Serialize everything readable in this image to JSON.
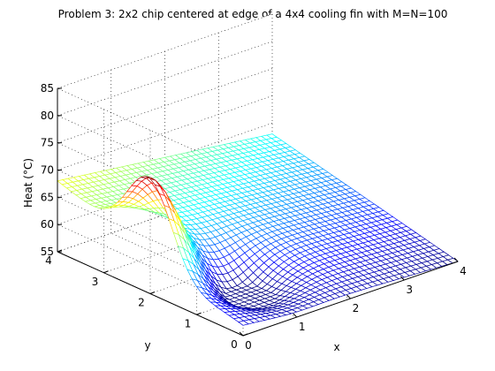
{
  "chart_data": {
    "type": "surface",
    "title": "Problem 3: 2x2 chip centered at edge of a 4x4 cooling fin with M=N=100",
    "xlabel": "x",
    "ylabel": "y",
    "zlabel": "Heat (°C)",
    "xlim": [
      0,
      4
    ],
    "ylim": [
      0,
      4
    ],
    "zlim": [
      55,
      85
    ],
    "x_ticks": [
      "0",
      "1",
      "2",
      "3",
      "4"
    ],
    "y_ticks": [
      "0",
      "1",
      "2",
      "3",
      "4"
    ],
    "z_ticks": [
      "55",
      "60",
      "65",
      "70",
      "75",
      "80",
      "85"
    ],
    "grid": true,
    "colormap": "jet",
    "grid_points": 100,
    "surface_features": {
      "peak_heat": 76,
      "peak_location": {
        "x": 0,
        "y": 2
      },
      "corner_values": {
        "x0_y4": 68,
        "x0_y0": 57,
        "x4_y4": 63,
        "x4_y0": 55
      }
    }
  }
}
